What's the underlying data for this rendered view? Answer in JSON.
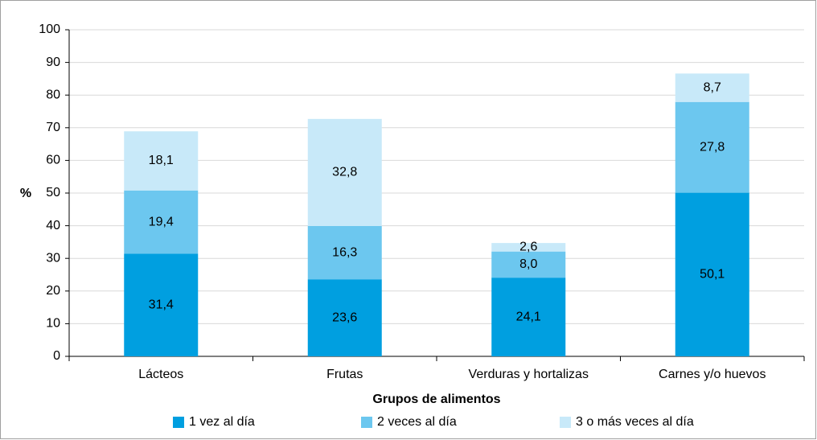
{
  "chart_data": {
    "type": "stacked_bar",
    "categories": [
      "Lácteos",
      "Frutas",
      "Verduras y hortalizas",
      "Carnes y/o huevos"
    ],
    "series": [
      {
        "name": "1 vez al día",
        "color": "#009fe0",
        "values": [
          31.4,
          23.6,
          24.1,
          50.1
        ],
        "value_labels": [
          "31,4",
          "23,6",
          "24,1",
          "50,1"
        ]
      },
      {
        "name": "2 veces al día",
        "color": "#6cc7ef",
        "values": [
          19.4,
          16.3,
          8.0,
          27.8
        ],
        "value_labels": [
          "19,4",
          "16,3",
          "8,0",
          "27,8"
        ]
      },
      {
        "name": "3 o más veces al día",
        "color": "#c8e9f9",
        "values": [
          18.1,
          32.8,
          2.6,
          8.7
        ],
        "value_labels": [
          "18,1",
          "32,8",
          "2,6",
          "8,7"
        ]
      }
    ],
    "ylabel": "%",
    "xlabel": "Grupos de alimentos",
    "ylim": [
      0,
      100
    ],
    "yticks": [
      0,
      10,
      20,
      30,
      40,
      50,
      60,
      70,
      80,
      90,
      100
    ],
    "grid": true,
    "legend": "bottom"
  }
}
